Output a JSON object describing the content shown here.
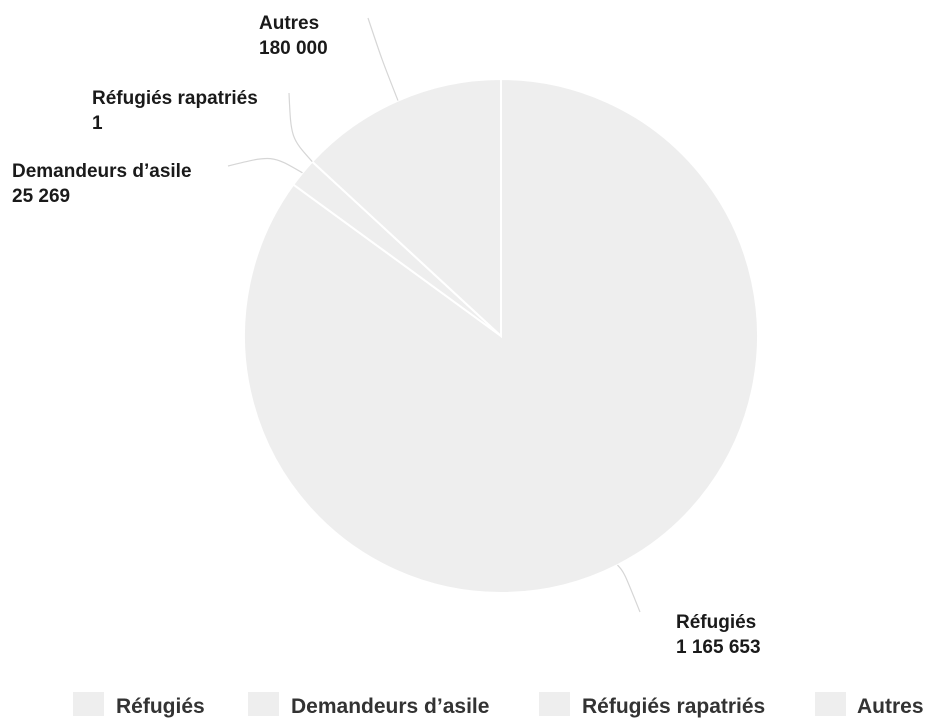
{
  "chart_data": {
    "type": "pie",
    "title": "",
    "categories": [
      "Réfugiés",
      "Demandeurs d’asile",
      "Réfugiés rapatriés",
      "Autres"
    ],
    "values": [
      1165653,
      25269,
      1,
      180000
    ],
    "value_labels": [
      "1 165 653",
      "25 269",
      "1",
      "180 000"
    ],
    "colors": [
      "#eeeeee",
      "#eeeeee",
      "#eeeeee",
      "#eeeeee"
    ],
    "legend": {
      "position": "bottom",
      "items": [
        "Réfugiés",
        "Demandeurs d’asile",
        "Réfugiés rapatriés",
        "Autres"
      ]
    }
  }
}
